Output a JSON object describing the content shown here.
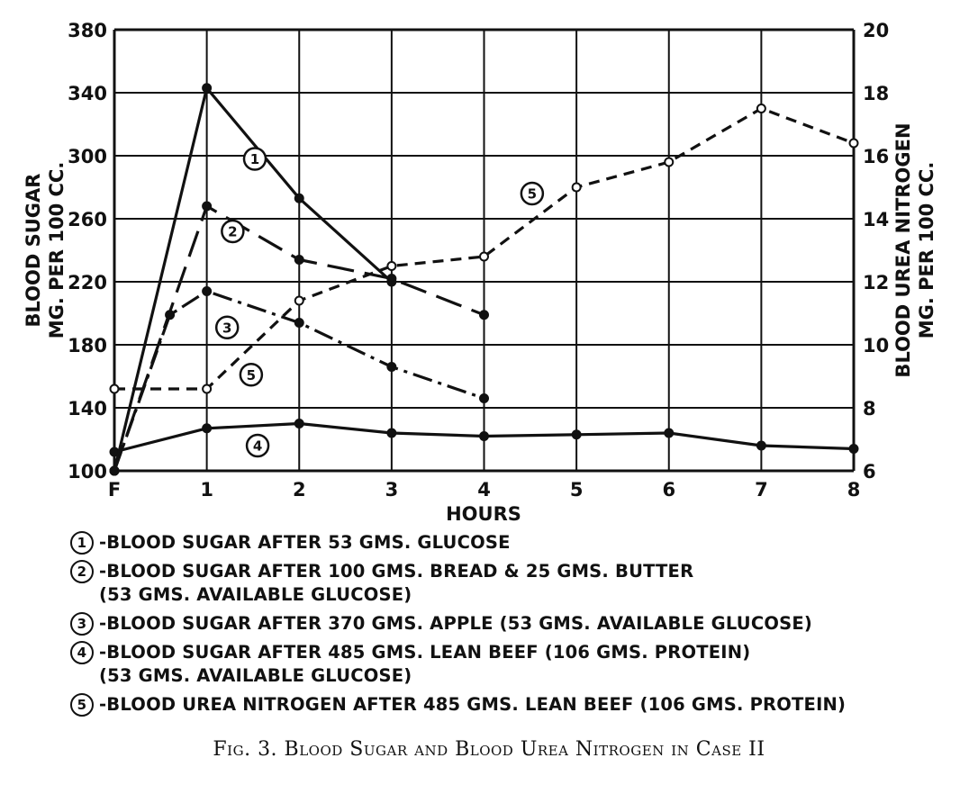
{
  "chart_data": {
    "type": "line",
    "x_ticks": [
      "F",
      "1",
      "2",
      "3",
      "4",
      "5",
      "6",
      "7",
      "8"
    ],
    "xlabel": "HOURS",
    "ylabel_left": [
      "BLOOD SUGAR",
      "MG. PER 100 CC."
    ],
    "ylabel_right": [
      "BLOOD UREA NITROGEN",
      "MG. PER 100 CC."
    ],
    "ylim_left": [
      100,
      380
    ],
    "yticks_left": [
      100,
      140,
      180,
      220,
      260,
      300,
      340,
      380
    ],
    "ylim_right": [
      6,
      20
    ],
    "yticks_right": [
      6,
      8,
      10,
      12,
      14,
      16,
      18,
      20
    ],
    "grid": true,
    "series": [
      {
        "name": "1",
        "axis": "left",
        "style": "solid",
        "x": [
          0,
          1,
          2,
          3
        ],
        "y": [
          100,
          343,
          273,
          220
        ]
      },
      {
        "name": "2",
        "axis": "left",
        "style": "longdash",
        "x": [
          0,
          1,
          2,
          3,
          4
        ],
        "y": [
          100,
          268,
          234,
          222,
          199
        ]
      },
      {
        "name": "3",
        "axis": "left",
        "style": "dashdot",
        "x": [
          0,
          0.6,
          1,
          2,
          3,
          4
        ],
        "y": [
          100,
          199,
          214,
          194,
          166,
          146
        ]
      },
      {
        "name": "4",
        "axis": "left",
        "style": "solid",
        "x": [
          0,
          1,
          2,
          3,
          4,
          5,
          6,
          7,
          8
        ],
        "y": [
          112,
          127,
          130,
          124,
          122,
          123,
          124,
          116,
          114
        ]
      },
      {
        "name": "5",
        "axis": "right",
        "style": "shortdash",
        "x": [
          0,
          1,
          2,
          3,
          4,
          5,
          6,
          7,
          8
        ],
        "y": [
          8.6,
          8.6,
          11.4,
          12.5,
          12.8,
          15.0,
          15.8,
          17.5,
          16.4
        ]
      }
    ],
    "callouts": [
      {
        "label": "1",
        "x": 1.52,
        "y_left": 298
      },
      {
        "label": "2",
        "x": 1.28,
        "y_left": 252
      },
      {
        "label": "3",
        "x": 1.22,
        "y_left": 191
      },
      {
        "label": "4",
        "x": 1.55,
        "y_left": 116
      },
      {
        "label": "5",
        "x": 1.48,
        "y_left": 161
      },
      {
        "label": "5",
        "x": 4.52,
        "y_left": 276
      }
    ]
  },
  "legend": [
    {
      "num": "1",
      "text": "-BLOOD SUGAR AFTER 53 GMS. GLUCOSE"
    },
    {
      "num": "2",
      "text": "-BLOOD SUGAR AFTER 100 GMS. BREAD & 25 GMS. BUTTER\n      (53 GMS. AVAILABLE GLUCOSE)"
    },
    {
      "num": "3",
      "text": "-BLOOD SUGAR AFTER 370 GMS. APPLE (53 GMS. AVAILABLE GLUCOSE)"
    },
    {
      "num": "4",
      "text": "-BLOOD SUGAR AFTER 485 GMS. LEAN BEEF (106 GMS. PROTEIN)\n   (53 GMS. AVAILABLE GLUCOSE)"
    },
    {
      "num": "5",
      "text": "-BLOOD UREA NITROGEN AFTER 485 GMS. LEAN BEEF (106 GMS. PROTEIN)"
    }
  ],
  "caption": "Fig. 3. Blood Sugar and Blood Urea Nitrogen in Case II"
}
